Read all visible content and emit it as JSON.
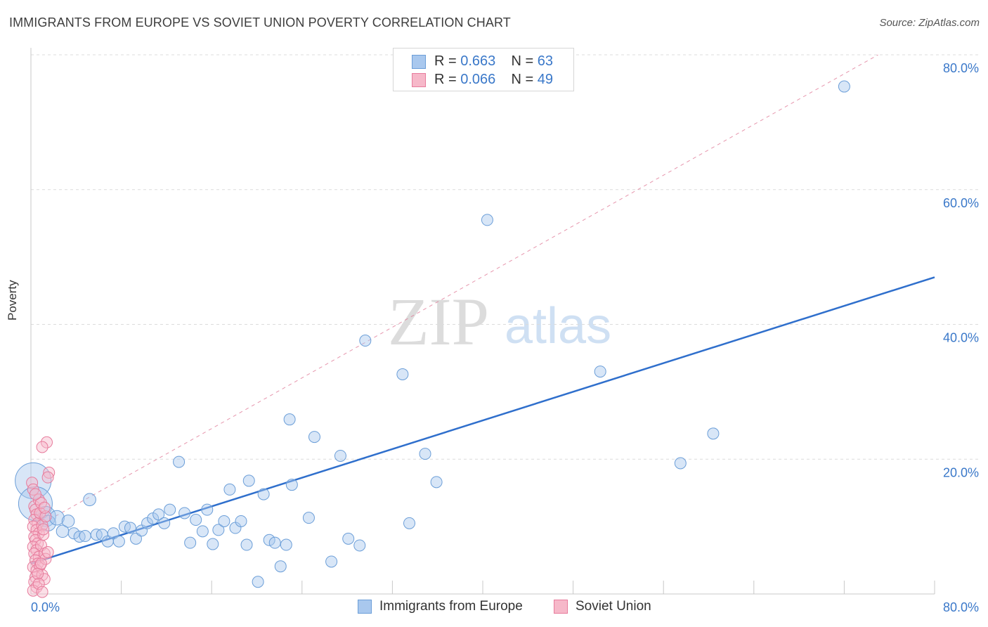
{
  "header": {
    "title": "IMMIGRANTS FROM EUROPE VS SOVIET UNION POVERTY CORRELATION CHART",
    "source": "Source: ZipAtlas.com"
  },
  "watermark": {
    "zip": "ZIP",
    "atlas": "atlas"
  },
  "legend_top": {
    "rows": [
      {
        "r_label": "R = ",
        "r_value": "0.663",
        "n_label": "N = ",
        "n_value": "63",
        "color": "#a9c8ee"
      },
      {
        "r_label": "R = ",
        "r_value": "0.066",
        "n_label": "N = ",
        "n_value": "49",
        "color": "#f6b8c9"
      }
    ]
  },
  "legend_bottom": {
    "items": [
      {
        "label": "Immigrants from Europe",
        "color": "#a9c8ee"
      },
      {
        "label": "Soviet Union",
        "color": "#f6b8c9"
      }
    ]
  },
  "chart_data": {
    "type": "scatter",
    "title": "IMMIGRANTS FROM EUROPE VS SOVIET UNION POVERTY CORRELATION CHART",
    "xlabel": "",
    "ylabel": "Poverty",
    "xlim": [
      0,
      80
    ],
    "ylim": [
      0,
      80
    ],
    "x_tick_labels": [
      "0.0%",
      "80.0%"
    ],
    "y_tick_labels": [
      "20.0%",
      "40.0%",
      "60.0%",
      "80.0%"
    ],
    "y_ticks": [
      20,
      40,
      60,
      80
    ],
    "grid": true,
    "legend_position": "top-center",
    "series": [
      {
        "name": "Immigrants from Europe",
        "color": "#a9c8ee",
        "stroke": "#6b9ed8",
        "trend_color": "#2f6fcc",
        "trend": {
          "x0": 0,
          "y0": 4.5,
          "x1": 80,
          "y1": 47
        },
        "points": [
          [
            0.2,
            16.8,
            3.2
          ],
          [
            0.4,
            13.4,
            3.0
          ],
          [
            1.3,
            11.5,
            1.8
          ],
          [
            1.5,
            10.5,
            1.4
          ],
          [
            2.3,
            11.3,
            1.3
          ],
          [
            2.8,
            9.3,
            1.1
          ],
          [
            3.3,
            10.8,
            1.1
          ],
          [
            3.8,
            9.0,
            1.0
          ],
          [
            4.3,
            8.5,
            1.0
          ],
          [
            4.8,
            8.6,
            1.0
          ],
          [
            5.2,
            14.0,
            1.1
          ],
          [
            5.8,
            8.8,
            1.0
          ],
          [
            6.3,
            8.8,
            1.0
          ],
          [
            6.8,
            7.8,
            1.0
          ],
          [
            7.3,
            9.0,
            1.0
          ],
          [
            7.8,
            7.8,
            1.0
          ],
          [
            8.3,
            10.0,
            1.0
          ],
          [
            8.8,
            9.8,
            1.0
          ],
          [
            9.3,
            8.2,
            1.0
          ],
          [
            9.8,
            9.4,
            1.0
          ],
          [
            10.3,
            10.5,
            1.0
          ],
          [
            10.8,
            11.2,
            1.0
          ],
          [
            11.3,
            11.8,
            1.0
          ],
          [
            11.8,
            10.5,
            1.0
          ],
          [
            12.3,
            12.5,
            1.0
          ],
          [
            13.1,
            19.6,
            1.0
          ],
          [
            13.6,
            12.0,
            1.0
          ],
          [
            14.1,
            7.6,
            1.0
          ],
          [
            14.6,
            11.0,
            1.0
          ],
          [
            15.2,
            9.3,
            1.0
          ],
          [
            15.6,
            12.5,
            1.0
          ],
          [
            16.1,
            7.4,
            1.0
          ],
          [
            16.6,
            9.5,
            1.0
          ],
          [
            17.1,
            10.8,
            1.0
          ],
          [
            17.6,
            15.5,
            1.0
          ],
          [
            18.1,
            9.8,
            1.0
          ],
          [
            18.6,
            10.8,
            1.0
          ],
          [
            19.1,
            7.3,
            1.0
          ],
          [
            19.3,
            16.8,
            1.0
          ],
          [
            20.1,
            1.8,
            1.0
          ],
          [
            20.6,
            14.8,
            1.0
          ],
          [
            21.1,
            8.0,
            1.0
          ],
          [
            21.6,
            7.6,
            1.0
          ],
          [
            22.1,
            4.1,
            1.0
          ],
          [
            22.6,
            7.3,
            1.0
          ],
          [
            22.9,
            25.9,
            1.0
          ],
          [
            23.1,
            16.2,
            1.0
          ],
          [
            24.6,
            11.3,
            1.0
          ],
          [
            25.1,
            23.3,
            1.0
          ],
          [
            26.6,
            4.8,
            1.0
          ],
          [
            27.4,
            20.5,
            1.0
          ],
          [
            28.1,
            8.2,
            1.0
          ],
          [
            29.1,
            7.2,
            1.0
          ],
          [
            29.6,
            37.6,
            1.0
          ],
          [
            32.9,
            32.6,
            1.0
          ],
          [
            33.5,
            10.5,
            1.0
          ],
          [
            34.9,
            20.8,
            1.0
          ],
          [
            35.9,
            16.6,
            1.0
          ],
          [
            40.4,
            55.5,
            1.0
          ],
          [
            50.4,
            33.0,
            1.0
          ],
          [
            57.5,
            19.4,
            1.0
          ],
          [
            60.4,
            23.8,
            1.0
          ],
          [
            72.0,
            75.3,
            1.0
          ]
        ]
      },
      {
        "name": "Soviet Union",
        "color": "#f6b8c9",
        "stroke": "#e77b9c",
        "trend_color": "#e07b98",
        "trend": {
          "x0": 0,
          "y0": 9.5,
          "x1": 75,
          "y1": 80
        },
        "points": [
          [
            0.1,
            16.5,
            1.0
          ],
          [
            0.2,
            15.5,
            1.0
          ],
          [
            0.3,
            13.0,
            1.0
          ],
          [
            0.4,
            12.5,
            1.0
          ],
          [
            0.5,
            11.8,
            1.0
          ],
          [
            0.3,
            11.0,
            1.0
          ],
          [
            0.6,
            10.5,
            1.0
          ],
          [
            0.2,
            10.0,
            1.0
          ],
          [
            0.5,
            9.5,
            1.0
          ],
          [
            0.7,
            9.0,
            1.0
          ],
          [
            0.3,
            8.5,
            1.0
          ],
          [
            0.4,
            8.0,
            1.0
          ],
          [
            0.6,
            7.5,
            1.0
          ],
          [
            0.2,
            7.0,
            1.0
          ],
          [
            0.5,
            6.5,
            1.0
          ],
          [
            0.3,
            6.0,
            1.0
          ],
          [
            0.7,
            5.5,
            1.0
          ],
          [
            0.4,
            5.0,
            1.0
          ],
          [
            0.6,
            4.5,
            1.0
          ],
          [
            0.2,
            4.0,
            1.0
          ],
          [
            0.5,
            3.5,
            1.0
          ],
          [
            0.4,
            2.5,
            1.0
          ],
          [
            0.3,
            1.8,
            1.0
          ],
          [
            0.5,
            1.0,
            1.0
          ],
          [
            0.2,
            0.5,
            1.0
          ],
          [
            0.8,
            12.0,
            1.0
          ],
          [
            1.0,
            10.2,
            1.0
          ],
          [
            1.1,
            8.8,
            1.0
          ],
          [
            0.9,
            7.2,
            1.0
          ],
          [
            1.2,
            6.0,
            1.0
          ],
          [
            0.8,
            4.2,
            1.0
          ],
          [
            1.0,
            2.8,
            1.0
          ],
          [
            1.2,
            2.2,
            1.0
          ],
          [
            1.4,
            22.5,
            1.0
          ],
          [
            1.6,
            18.0,
            1.0
          ],
          [
            1.5,
            17.3,
            1.0
          ],
          [
            1.0,
            21.8,
            1.0
          ],
          [
            0.7,
            14.0,
            1.0
          ],
          [
            0.9,
            13.5,
            1.0
          ],
          [
            1.3,
            11.5,
            1.0
          ],
          [
            1.1,
            9.6,
            1.0
          ],
          [
            0.6,
            3.0,
            1.0
          ],
          [
            1.3,
            5.2,
            1.0
          ],
          [
            0.9,
            4.5,
            1.0
          ],
          [
            1.5,
            6.2,
            1.0
          ],
          [
            1.2,
            12.8,
            1.0
          ],
          [
            0.4,
            14.8,
            1.0
          ],
          [
            0.7,
            1.5,
            1.0
          ],
          [
            1.0,
            0.3,
            1.0
          ]
        ]
      }
    ]
  }
}
